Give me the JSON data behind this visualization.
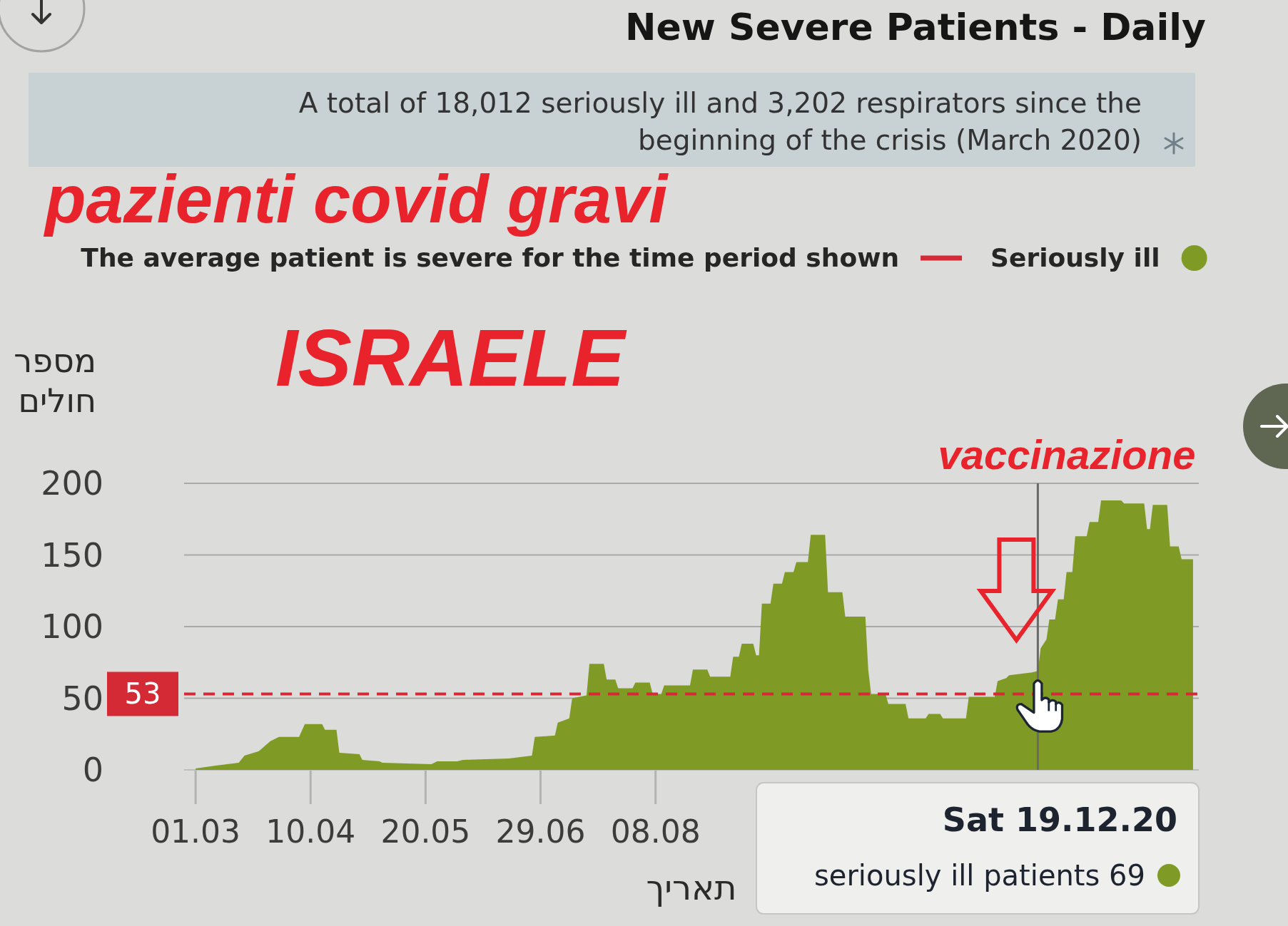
{
  "chart_data": {
    "type": "area",
    "title": "New Severe Patients - Daily",
    "subtitle": "A total of 18,012 seriously ill and 3,202 respirators since the beginning of the crisis (March 2020)",
    "ylabel": "מספר חולים",
    "xlabel": "תאריך",
    "x": [
      "2020-03-01",
      "2020-03-08",
      "2020-03-16",
      "2020-03-18",
      "2020-03-23",
      "2020-03-27",
      "2020-03-30",
      "2020-04-06",
      "2020-04-08",
      "2020-04-14",
      "2020-04-15",
      "2020-04-19",
      "2020-04-20",
      "2020-04-27",
      "2020-04-28",
      "2020-05-04",
      "2020-05-05",
      "2020-05-22",
      "2020-05-24",
      "2020-05-31",
      "2020-06-02",
      "2020-06-18",
      "2020-06-26",
      "2020-06-27",
      "2020-07-04",
      "2020-07-05",
      "2020-07-09",
      "2020-07-10",
      "2020-07-15",
      "2020-07-16",
      "2020-07-21",
      "2020-07-22",
      "2020-07-25",
      "2020-07-26",
      "2020-07-31",
      "2020-08-01",
      "2020-08-06",
      "2020-08-07",
      "2020-08-10",
      "2020-08-11",
      "2020-08-20",
      "2020-08-21",
      "2020-08-26",
      "2020-08-27",
      "2020-09-03",
      "2020-09-04",
      "2020-09-06",
      "2020-09-07",
      "2020-09-11",
      "2020-09-12",
      "2020-09-13",
      "2020-09-14",
      "2020-09-17",
      "2020-09-18",
      "2020-09-21",
      "2020-09-22",
      "2020-09-25",
      "2020-09-26",
      "2020-09-30",
      "2020-10-01",
      "2020-10-06",
      "2020-10-07",
      "2020-10-12",
      "2020-10-13",
      "2020-10-20",
      "2020-10-21",
      "2020-10-22",
      "2020-10-27",
      "2020-10-28",
      "2020-11-03",
      "2020-11-04",
      "2020-11-10",
      "2020-11-11",
      "2020-11-15",
      "2020-11-16",
      "2020-11-24",
      "2020-11-25",
      "2020-12-04",
      "2020-12-05",
      "2020-12-08",
      "2020-12-09",
      "2020-12-13",
      "2020-12-17",
      "2020-12-19",
      "2020-12-20",
      "2020-12-22",
      "2020-12-23",
      "2020-12-25",
      "2020-12-26",
      "2020-12-28",
      "2020-12-29",
      "2020-12-31",
      "2021-01-01",
      "2021-01-05",
      "2021-01-06",
      "2021-01-09",
      "2021-01-10",
      "2021-01-17",
      "2021-01-18",
      "2021-01-25",
      "2021-01-26",
      "2021-01-27",
      "2021-01-28",
      "2021-02-02",
      "2021-02-03",
      "2021-02-06",
      "2021-02-07",
      "2021-02-11"
    ],
    "series": [
      {
        "name": "Seriously ill",
        "color": "#7f9b26",
        "values": [
          1,
          3,
          5,
          10,
          13,
          20,
          23,
          23,
          32,
          32,
          28,
          28,
          12,
          11,
          7,
          6,
          5,
          4,
          6,
          6,
          7,
          8,
          10,
          23,
          24,
          33,
          36,
          50,
          52,
          74,
          74,
          63,
          63,
          57,
          57,
          61,
          61,
          53,
          53,
          59,
          59,
          70,
          70,
          65,
          65,
          79,
          79,
          88,
          88,
          80,
          80,
          116,
          116,
          130,
          130,
          138,
          138,
          145,
          145,
          164,
          164,
          124,
          124,
          107,
          107,
          70,
          53,
          53,
          46,
          46,
          36,
          36,
          39,
          39,
          36,
          36,
          51,
          51,
          62,
          64,
          66,
          67,
          68,
          69,
          85,
          91,
          105,
          105,
          119,
          119,
          138,
          138,
          163,
          163,
          173,
          173,
          188,
          188,
          186,
          186,
          168,
          168,
          185,
          185,
          156,
          156,
          147,
          147
        ]
      }
    ],
    "xlim": [
      "2020-02-26",
      "2021-02-13"
    ],
    "xticks": [
      {
        "value": "2020-03-01",
        "label": "01.03"
      },
      {
        "value": "2020-04-10",
        "label": "10.04"
      },
      {
        "value": "2020-05-20",
        "label": "20.05"
      },
      {
        "value": "2020-06-29",
        "label": "29.06"
      },
      {
        "value": "2020-08-08",
        "label": "08.08"
      }
    ],
    "ylim": [
      0,
      200
    ],
    "yticks": [
      0,
      50,
      100,
      150,
      200
    ],
    "grid": "y",
    "legend": "top",
    "ref_lines": [
      {
        "axis": "y",
        "value": 53,
        "label": "The average patient is severe for the time period shown",
        "color": "#d42a36",
        "line_style": "dashed"
      },
      {
        "axis": "x",
        "value": "2020-12-19",
        "label": "vaccinazione",
        "color": "#6a6a6a"
      }
    ],
    "annotations": [
      "pazienti covid gravi",
      "ISRAELE",
      "Sat 19.12.20",
      "seriously ill patients 69",
      {
        "text": "53",
        "x": "2020-02-26",
        "y": 53
      }
    ]
  }
}
